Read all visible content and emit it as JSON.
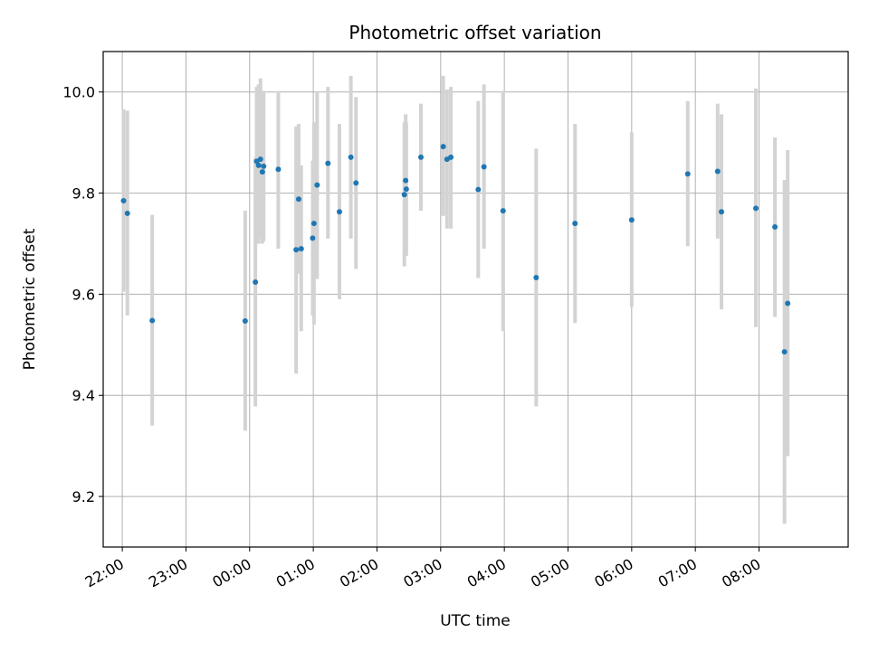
{
  "chart_data": {
    "type": "scatter",
    "title": "Photometric offset variation",
    "xlabel": "UTC time",
    "ylabel": "Photometric offset",
    "grid": true,
    "xlim": [
      -2.3,
      9.4
    ],
    "ylim": [
      9.1,
      10.08
    ],
    "x_ticks": [
      {
        "value": -2,
        "label": "22:00"
      },
      {
        "value": -1,
        "label": "23:00"
      },
      {
        "value": 0,
        "label": "00:00"
      },
      {
        "value": 1,
        "label": "01:00"
      },
      {
        "value": 2,
        "label": "02:00"
      },
      {
        "value": 3,
        "label": "03:00"
      },
      {
        "value": 4,
        "label": "04:00"
      },
      {
        "value": 5,
        "label": "05:00"
      },
      {
        "value": 6,
        "label": "06:00"
      },
      {
        "value": 7,
        "label": "07:00"
      },
      {
        "value": 8,
        "label": "08:00"
      }
    ],
    "y_ticks": [
      {
        "value": 9.2,
        "label": "9.2"
      },
      {
        "value": 9.4,
        "label": "9.4"
      },
      {
        "value": 9.6,
        "label": "9.6"
      },
      {
        "value": 9.8,
        "label": "9.8"
      },
      {
        "value": 10.0,
        "label": "10.0"
      }
    ],
    "x_unit_note": "hours relative to 00:00 UTC",
    "series": [
      {
        "color": "#1f77b4",
        "errorbar_color": "#d3d3d3",
        "points": [
          {
            "x": -1.98,
            "y": 9.785,
            "lo": 9.605,
            "hi": 9.966
          },
          {
            "x": -1.92,
            "y": 9.76,
            "lo": 9.558,
            "hi": 9.963
          },
          {
            "x": -1.53,
            "y": 9.548,
            "lo": 9.34,
            "hi": 9.757
          },
          {
            "x": -0.07,
            "y": 9.547,
            "lo": 9.33,
            "hi": 9.765
          },
          {
            "x": 0.09,
            "y": 9.624,
            "lo": 9.378,
            "hi": 9.87
          },
          {
            "x": 0.11,
            "y": 9.863,
            "lo": 9.71,
            "hi": 10.01
          },
          {
            "x": 0.14,
            "y": 9.855,
            "lo": 9.7,
            "hi": 10.015
          },
          {
            "x": 0.17,
            "y": 9.867,
            "lo": 9.713,
            "hi": 10.027
          },
          {
            "x": 0.2,
            "y": 9.842,
            "lo": 9.7,
            "hi": 9.986
          },
          {
            "x": 0.22,
            "y": 9.853,
            "lo": 9.705,
            "hi": 10.002
          },
          {
            "x": 0.45,
            "y": 9.847,
            "lo": 9.69,
            "hi": 10.002
          },
          {
            "x": 0.73,
            "y": 9.688,
            "lo": 9.443,
            "hi": 9.932
          },
          {
            "x": 0.77,
            "y": 9.788,
            "lo": 9.64,
            "hi": 9.937
          },
          {
            "x": 0.81,
            "y": 9.69,
            "lo": 9.527,
            "hi": 9.855
          },
          {
            "x": 0.99,
            "y": 9.711,
            "lo": 9.558,
            "hi": 9.864
          },
          {
            "x": 1.01,
            "y": 9.74,
            "lo": 9.54,
            "hi": 9.94
          },
          {
            "x": 1.06,
            "y": 9.816,
            "lo": 9.63,
            "hi": 10.0
          },
          {
            "x": 1.23,
            "y": 9.859,
            "lo": 9.71,
            "hi": 10.01
          },
          {
            "x": 1.41,
            "y": 9.763,
            "lo": 9.59,
            "hi": 9.937
          },
          {
            "x": 1.59,
            "y": 9.871,
            "lo": 9.71,
            "hi": 10.032
          },
          {
            "x": 1.67,
            "y": 9.82,
            "lo": 9.65,
            "hi": 9.99
          },
          {
            "x": 2.43,
            "y": 9.797,
            "lo": 9.655,
            "hi": 9.94
          },
          {
            "x": 2.45,
            "y": 9.825,
            "lo": 9.7,
            "hi": 9.956
          },
          {
            "x": 2.46,
            "y": 9.808,
            "lo": 9.676,
            "hi": 9.94
          },
          {
            "x": 2.69,
            "y": 9.871,
            "lo": 9.765,
            "hi": 9.977
          },
          {
            "x": 3.04,
            "y": 9.892,
            "lo": 9.755,
            "hi": 10.032
          },
          {
            "x": 3.1,
            "y": 9.867,
            "lo": 9.73,
            "hi": 10.005
          },
          {
            "x": 3.16,
            "y": 9.871,
            "lo": 9.73,
            "hi": 10.01
          },
          {
            "x": 3.59,
            "y": 9.807,
            "lo": 9.632,
            "hi": 9.982
          },
          {
            "x": 3.68,
            "y": 9.852,
            "lo": 9.69,
            "hi": 10.015
          },
          {
            "x": 3.98,
            "y": 9.765,
            "lo": 9.527,
            "hi": 10.002
          },
          {
            "x": 4.5,
            "y": 9.633,
            "lo": 9.378,
            "hi": 9.888
          },
          {
            "x": 5.11,
            "y": 9.74,
            "lo": 9.543,
            "hi": 9.937
          },
          {
            "x": 6.0,
            "y": 9.747,
            "lo": 9.575,
            "hi": 9.92
          },
          {
            "x": 6.88,
            "y": 9.838,
            "lo": 9.695,
            "hi": 9.982
          },
          {
            "x": 7.35,
            "y": 9.843,
            "lo": 9.71,
            "hi": 9.977
          },
          {
            "x": 7.41,
            "y": 9.763,
            "lo": 9.57,
            "hi": 9.956
          },
          {
            "x": 7.95,
            "y": 9.77,
            "lo": 9.535,
            "hi": 10.007
          },
          {
            "x": 8.25,
            "y": 9.733,
            "lo": 9.555,
            "hi": 9.91
          },
          {
            "x": 8.4,
            "y": 9.486,
            "lo": 9.146,
            "hi": 9.826
          },
          {
            "x": 8.45,
            "y": 9.582,
            "lo": 9.28,
            "hi": 9.885
          }
        ]
      }
    ]
  }
}
